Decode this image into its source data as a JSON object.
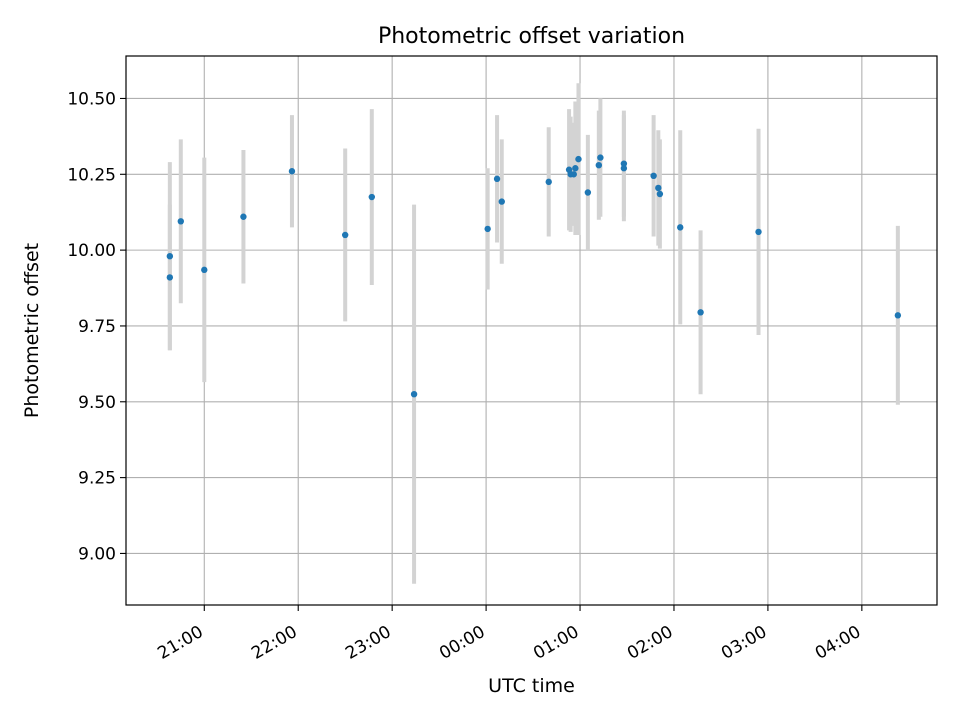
{
  "chart_data": {
    "type": "scatter",
    "title": "Photometric offset variation",
    "xlabel": "UTC time",
    "ylabel": "Photometric offset",
    "x_unit": "hours since 2019-01-01 00:00 UTC",
    "xlim": [
      "20:10",
      "04:48 (+1 day)"
    ],
    "ylim": [
      8.83,
      10.64
    ],
    "x_ticks": [
      "21:00",
      "22:00",
      "23:00",
      "00:00",
      "01:00",
      "02:00",
      "03:00",
      "04:00"
    ],
    "y_ticks": [
      "9.00",
      "9.25",
      "9.50",
      "9.75",
      "10.00",
      "10.25",
      "10.50"
    ],
    "grid": true,
    "colors": {
      "point": "#1f77b4",
      "errorbar": "#d3d3d3",
      "grid": "#b0b0b0"
    },
    "points": [
      {
        "time": "20:38",
        "y": 9.98,
        "yerr": 0.31
      },
      {
        "time": "20:38",
        "y": 9.91,
        "yerr": 0.24
      },
      {
        "time": "20:45",
        "y": 10.095,
        "yerr": 0.27
      },
      {
        "time": "21:00",
        "y": 9.935,
        "yerr": 0.37
      },
      {
        "time": "21:25",
        "y": 10.11,
        "yerr": 0.22
      },
      {
        "time": "21:56",
        "y": 10.26,
        "yerr": 0.185
      },
      {
        "time": "22:30",
        "y": 10.05,
        "yerr": 0.285
      },
      {
        "time": "22:47",
        "y": 10.175,
        "yerr": 0.29
      },
      {
        "time": "23:14",
        "y": 9.525,
        "yerr": 0.625
      },
      {
        "time": "00:01",
        "y": 10.07,
        "yerr": 0.2
      },
      {
        "time": "00:07",
        "y": 10.235,
        "yerr": 0.21
      },
      {
        "time": "00:10",
        "y": 10.16,
        "yerr": 0.205
      },
      {
        "time": "00:40",
        "y": 10.225,
        "yerr": 0.18
      },
      {
        "time": "00:53",
        "y": 10.265,
        "yerr": 0.2
      },
      {
        "time": "00:54",
        "y": 10.25,
        "yerr": 0.19
      },
      {
        "time": "00:56",
        "y": 10.25,
        "yerr": 0.17
      },
      {
        "time": "00:57",
        "y": 10.27,
        "yerr": 0.22
      },
      {
        "time": "00:59",
        "y": 10.3,
        "yerr": 0.25
      },
      {
        "time": "01:05",
        "y": 10.19,
        "yerr": 0.19
      },
      {
        "time": "01:12",
        "y": 10.28,
        "yerr": 0.18
      },
      {
        "time": "01:13",
        "y": 10.305,
        "yerr": 0.195
      },
      {
        "time": "01:28",
        "y": 10.285,
        "yerr": 0.175
      },
      {
        "time": "01:28",
        "y": 10.27,
        "yerr": 0.175
      },
      {
        "time": "01:47",
        "y": 10.245,
        "yerr": 0.2
      },
      {
        "time": "01:50",
        "y": 10.205,
        "yerr": 0.19
      },
      {
        "time": "01:51",
        "y": 10.185,
        "yerr": 0.18
      },
      {
        "time": "02:04",
        "y": 10.075,
        "yerr": 0.32
      },
      {
        "time": "02:17",
        "y": 9.795,
        "yerr": 0.27
      },
      {
        "time": "02:54",
        "y": 10.06,
        "yerr": 0.34
      },
      {
        "time": "04:23",
        "y": 9.785,
        "yerr": 0.295
      }
    ]
  }
}
